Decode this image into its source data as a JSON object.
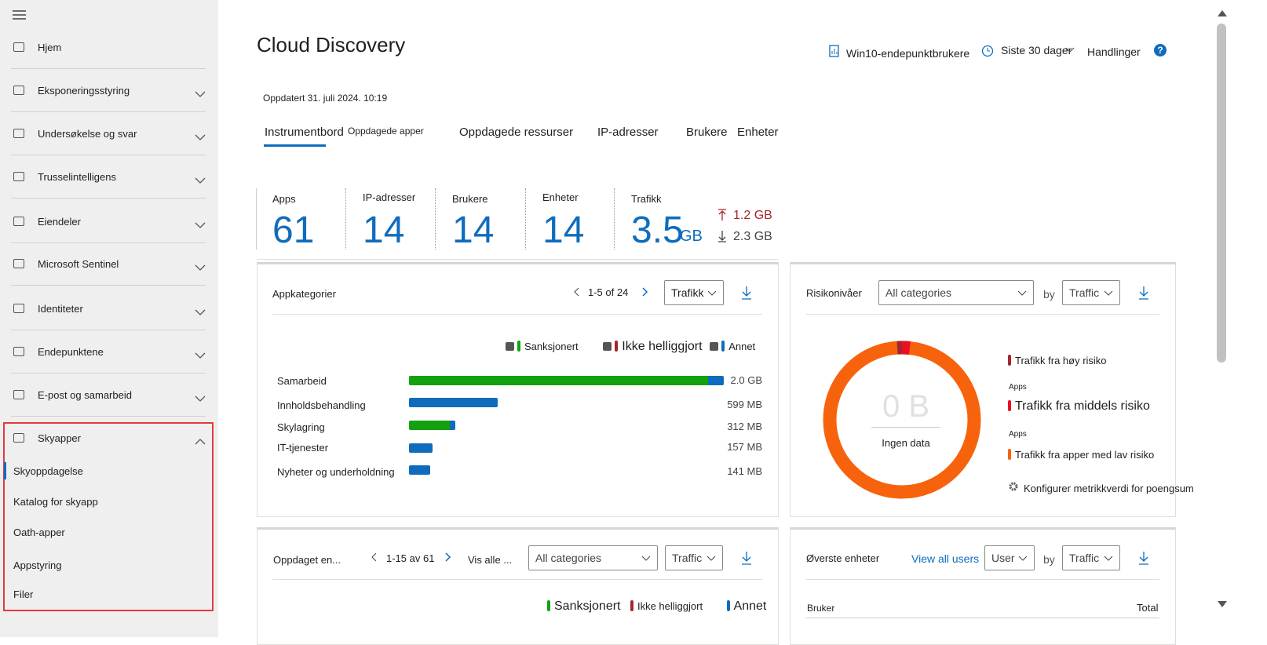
{
  "sidebar": {
    "items": [
      "Hjem",
      "Eksponeringsstyring",
      "Undersøkelse og svar",
      "Trusselintelligens",
      "Eiendeler",
      "Microsoft Sentinel",
      "Identiteter",
      "Endepunktene",
      "E-post og samarbeid"
    ],
    "expanded": {
      "label": "Skyapper",
      "children": [
        "Skyoppdagelse",
        "Katalog for skyapp",
        "Oath-apper",
        "Appstyring",
        "Filer"
      ]
    }
  },
  "header": {
    "title": "Cloud Discovery",
    "report": "Win10-endepunktbrukere",
    "period": "Siste 30 dager",
    "actions": "Handlinger",
    "help": "?",
    "updated": "Oppdatert 31. juli 2024. 10:19"
  },
  "tabs": [
    "Instrumentbord",
    "Oppdagede apper",
    "Oppdagede ressurser",
    "IP-adresser",
    "Brukere",
    "Enheter"
  ],
  "stats": [
    {
      "label": "Apps",
      "value": 61
    },
    {
      "label": "IP-adresser",
      "value": 14
    },
    {
      "label": "Brukere",
      "value": 14
    },
    {
      "label": "Enheter",
      "value": 14
    },
    {
      "label": "Trafikk",
      "value": 3.5,
      "unit": "GB",
      "upload": "1.2 GB",
      "download": "2.3 GB"
    }
  ],
  "app_categories": {
    "title": "Appkategorier",
    "pager": "1-5 of 24",
    "dropdown": "Trafikk",
    "legend": [
      "Sanksjonert",
      "Ikke helliggjort",
      "Annet"
    ],
    "rows": [
      {
        "name": "Samarbeid",
        "value": "2.0 GB"
      },
      {
        "name": "Innholdsbehandling",
        "value": "599 MB"
      },
      {
        "name": "Skylagring",
        "value": "312 MB"
      },
      {
        "name": "IT-tjenester",
        "value": "157 MB"
      },
      {
        "name": "Nyheter og underholdning",
        "value": "141 MB"
      }
    ]
  },
  "risk": {
    "title": "Risikonivåer",
    "category": "All categories",
    "by": "by",
    "metric": "Traffic",
    "center_value": "0 B",
    "center_label": "Ingen data",
    "legend": [
      "Trafikk fra høy risiko",
      "Trafikk fra middels risiko",
      "Trafikk fra apper med lav risiko"
    ],
    "apps_label": "Apps",
    "configure": "Konfigurer metrikkverdi for poengsum"
  },
  "discovered": {
    "title": "Oppdaget en...",
    "pager": "1-15 av 61",
    "view_all": "Vis alle ...",
    "category": "All categories",
    "metric": "Traffic",
    "legend": [
      "Sanksjonert",
      "Ikke helliggjort",
      "Annet"
    ]
  },
  "top_entities": {
    "title": "Øverste enheter",
    "view_all": "View all users",
    "entity": "User",
    "by": "by",
    "metric": "Traffic",
    "columns": [
      "Bruker",
      "Total"
    ]
  }
}
